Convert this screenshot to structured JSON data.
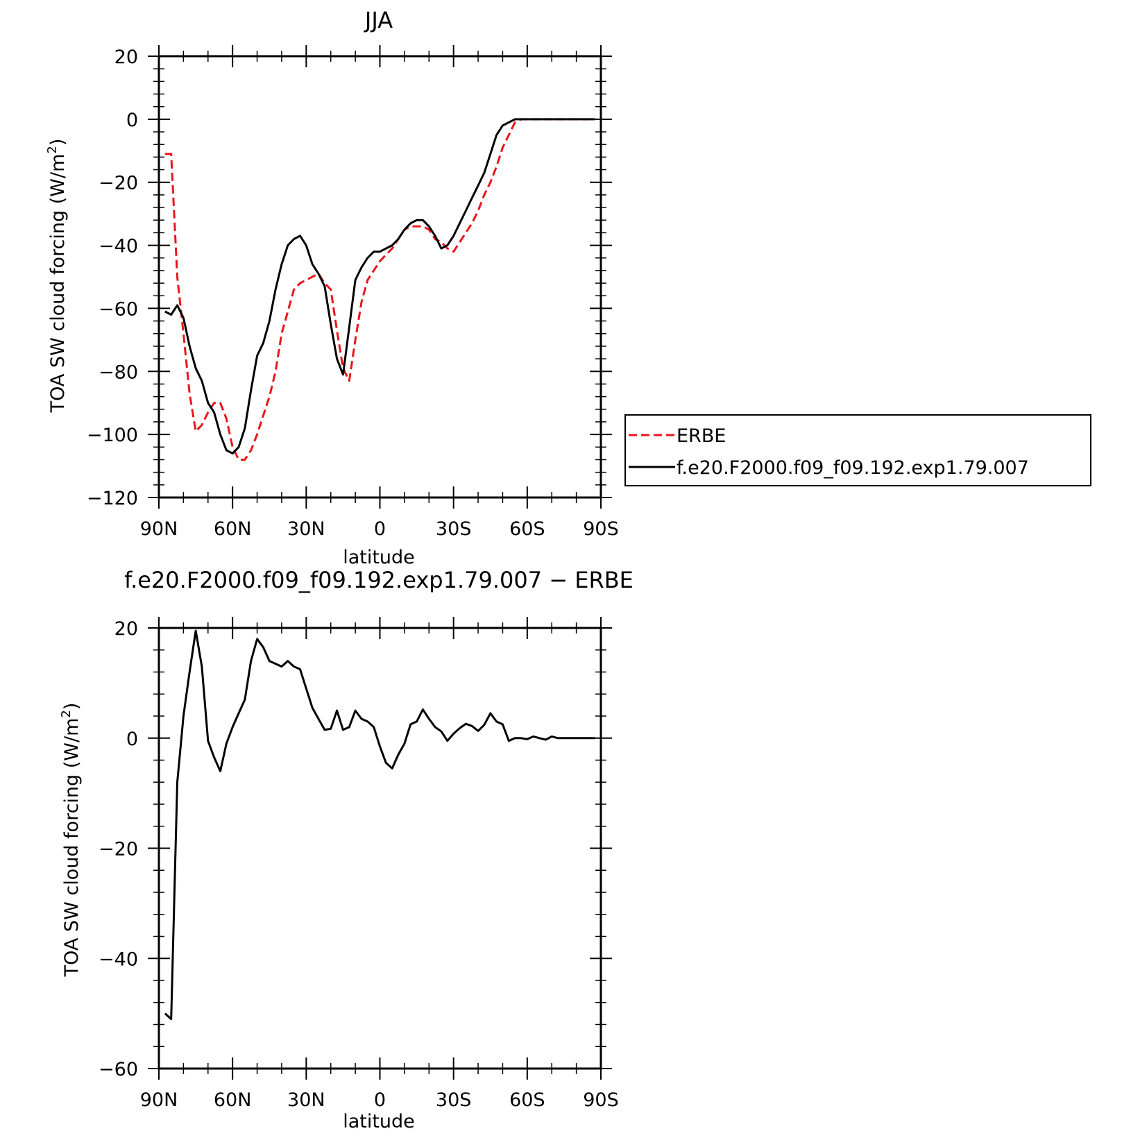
{
  "chart_data": [
    {
      "type": "line",
      "title": "JJA",
      "xlabel": "latitude",
      "ylabel": "TOA SW cloud forcing (W/m",
      "ylabel_sup": "2",
      "ylabel_close": ")",
      "xlim": [
        90,
        -90
      ],
      "ylim": [
        -120,
        20
      ],
      "yticks": [
        20,
        0,
        -20,
        -40,
        -60,
        -80,
        -100,
        -120
      ],
      "ytick_labels": [
        "20",
        "0",
        "−20",
        "−40",
        "−60",
        "−80",
        "−100",
        "−120"
      ],
      "xticks": [
        90,
        60,
        30,
        0,
        -30,
        -60,
        -90
      ],
      "xtick_labels": [
        "90N",
        "60N",
        "30N",
        "0",
        "30S",
        "60S",
        "90S"
      ],
      "legend_position": "right",
      "series": [
        {
          "name": "ERBE",
          "color": "#e8161a",
          "dash": "dashed",
          "x": [
            87.5,
            85,
            82.5,
            80,
            77.5,
            75,
            72.5,
            70,
            67.5,
            65,
            62.5,
            60,
            57.5,
            55,
            52.5,
            50,
            47.5,
            45,
            42.5,
            40,
            37.5,
            35,
            32.5,
            30,
            27.5,
            25,
            22.5,
            20,
            17.5,
            15,
            12.5,
            10,
            7.5,
            5,
            2.5,
            0,
            -2.5,
            -5,
            -7.5,
            -10,
            -12.5,
            -15,
            -17.5,
            -20,
            -22.5,
            -25,
            -27.5,
            -30,
            -32.5,
            -35,
            -37.5,
            -40,
            -42.5,
            -45,
            -47.5,
            -50,
            -52.5,
            -55,
            -57.5,
            -60,
            -62.5,
            -65,
            -67.5,
            -70,
            -72.5,
            -75,
            -77.5,
            -80,
            -82.5,
            -85,
            -87.5
          ],
          "y": [
            -11,
            -11,
            -50,
            -68,
            -87,
            -99,
            -97,
            -93,
            -90,
            -90,
            -95,
            -104,
            -108,
            -108,
            -105,
            -100,
            -94,
            -88,
            -80,
            -68,
            -61,
            -54,
            -52,
            -51,
            -50,
            -49,
            -52,
            -54,
            -67,
            -79,
            -83,
            -70,
            -58,
            -51,
            -48,
            -45,
            -43,
            -41,
            -38,
            -35,
            -34,
            -34,
            -34,
            -35,
            -38,
            -39,
            -41,
            -42,
            -39,
            -36,
            -33,
            -29,
            -24,
            -20,
            -15,
            -9,
            -5,
            -1,
            0,
            0,
            0,
            0,
            0,
            0,
            0,
            0,
            0,
            0,
            0,
            0,
            0
          ]
        },
        {
          "name": "f.e20.F2000.f09_f09.192.exp1.79.007",
          "color": "#000000",
          "dash": "solid",
          "x": [
            87.5,
            85,
            82.5,
            80,
            77.5,
            75,
            72.5,
            70,
            67.5,
            65,
            62.5,
            60,
            57.5,
            55,
            52.5,
            50,
            47.5,
            45,
            42.5,
            40,
            37.5,
            35,
            32.5,
            30,
            27.5,
            25,
            22.5,
            20,
            17.5,
            15,
            12.5,
            10,
            7.5,
            5,
            2.5,
            0,
            -2.5,
            -5,
            -7.5,
            -10,
            -12.5,
            -15,
            -17.5,
            -20,
            -22.5,
            -25,
            -27.5,
            -30,
            -32.5,
            -35,
            -37.5,
            -40,
            -42.5,
            -45,
            -47.5,
            -50,
            -52.5,
            -55,
            -57.5,
            -60,
            -62.5,
            -65,
            -67.5,
            -70,
            -72.5,
            -75,
            -77.5,
            -80,
            -82.5,
            -85,
            -87.5
          ],
          "y": [
            -61,
            -62,
            -59,
            -63,
            -72,
            -79,
            -83,
            -90,
            -93,
            -100,
            -105,
            -106,
            -104,
            -98,
            -86,
            -75,
            -71,
            -64,
            -54,
            -46,
            -40,
            -38,
            -37,
            -40,
            -46,
            -49,
            -53,
            -65,
            -76,
            -81,
            -66,
            -51,
            -47,
            -44,
            -42,
            -42,
            -41,
            -40,
            -38,
            -35,
            -33,
            -32,
            -32,
            -34,
            -37,
            -41,
            -40,
            -37,
            -33,
            -29,
            -25,
            -21,
            -17,
            -11,
            -5,
            -2,
            -1,
            0,
            0,
            0,
            0,
            0,
            0,
            0,
            0,
            0,
            0,
            0,
            0,
            0,
            0
          ]
        }
      ]
    },
    {
      "type": "line",
      "title": "f.e20.F2000.f09_f09.192.exp1.79.007 − ERBE",
      "xlabel": "latitude",
      "ylabel": "TOA SW cloud forcing (W/m",
      "ylabel_sup": "2",
      "ylabel_close": ")",
      "xlim": [
        90,
        -90
      ],
      "ylim": [
        -60,
        20
      ],
      "yticks": [
        20,
        0,
        -20,
        -40,
        -60
      ],
      "ytick_labels": [
        "20",
        "0",
        "−20",
        "−40",
        "−60"
      ],
      "xticks": [
        90,
        60,
        30,
        0,
        -30,
        -60,
        -90
      ],
      "xtick_labels": [
        "90N",
        "60N",
        "30N",
        "0",
        "30S",
        "60S",
        "90S"
      ],
      "series": [
        {
          "color": "#000000",
          "dash": "solid",
          "x": [
            87.5,
            85,
            82.5,
            80,
            77.5,
            75,
            72.5,
            70,
            67.5,
            65,
            62.5,
            60,
            57.5,
            55,
            52.5,
            50,
            47.5,
            45,
            42.5,
            40,
            37.5,
            35,
            32.5,
            30,
            27.5,
            25,
            22.5,
            20,
            17.5,
            15,
            12.5,
            10,
            7.5,
            5,
            2.5,
            0,
            -2.5,
            -5,
            -7.5,
            -10,
            -12.5,
            -15,
            -17.5,
            -20,
            -22.5,
            -25,
            -27.5,
            -30,
            -32.5,
            -35,
            -37.5,
            -40,
            -42.5,
            -45,
            -47.5,
            -50,
            -52.5,
            -55,
            -57.5,
            -60,
            -62.5,
            -65,
            -67.5,
            -70,
            -72.5,
            -75,
            -77.5,
            -80,
            -82.5,
            -85,
            -87.5
          ],
          "y": [
            -50,
            -51,
            -8,
            4,
            12,
            19.5,
            13,
            -0.5,
            -3.5,
            -6,
            -1,
            2,
            4.5,
            7,
            14,
            18,
            16.5,
            14,
            13.5,
            13,
            14,
            13,
            12.5,
            9,
            5.5,
            3.5,
            1.5,
            1.7,
            5,
            1.5,
            2,
            5,
            3.5,
            3,
            2,
            -1.5,
            -4.5,
            -5.5,
            -3,
            -1,
            2.5,
            3,
            5.2,
            3.5,
            2,
            1.2,
            -0.5,
            0.8,
            1.8,
            2.6,
            2.2,
            1.3,
            2.4,
            4.5,
            3,
            2.5,
            -0.5,
            0,
            0,
            -0.2,
            0.3,
            0,
            -0.3,
            0.3,
            0,
            0,
            0,
            0,
            0,
            0,
            0
          ]
        }
      ]
    }
  ]
}
